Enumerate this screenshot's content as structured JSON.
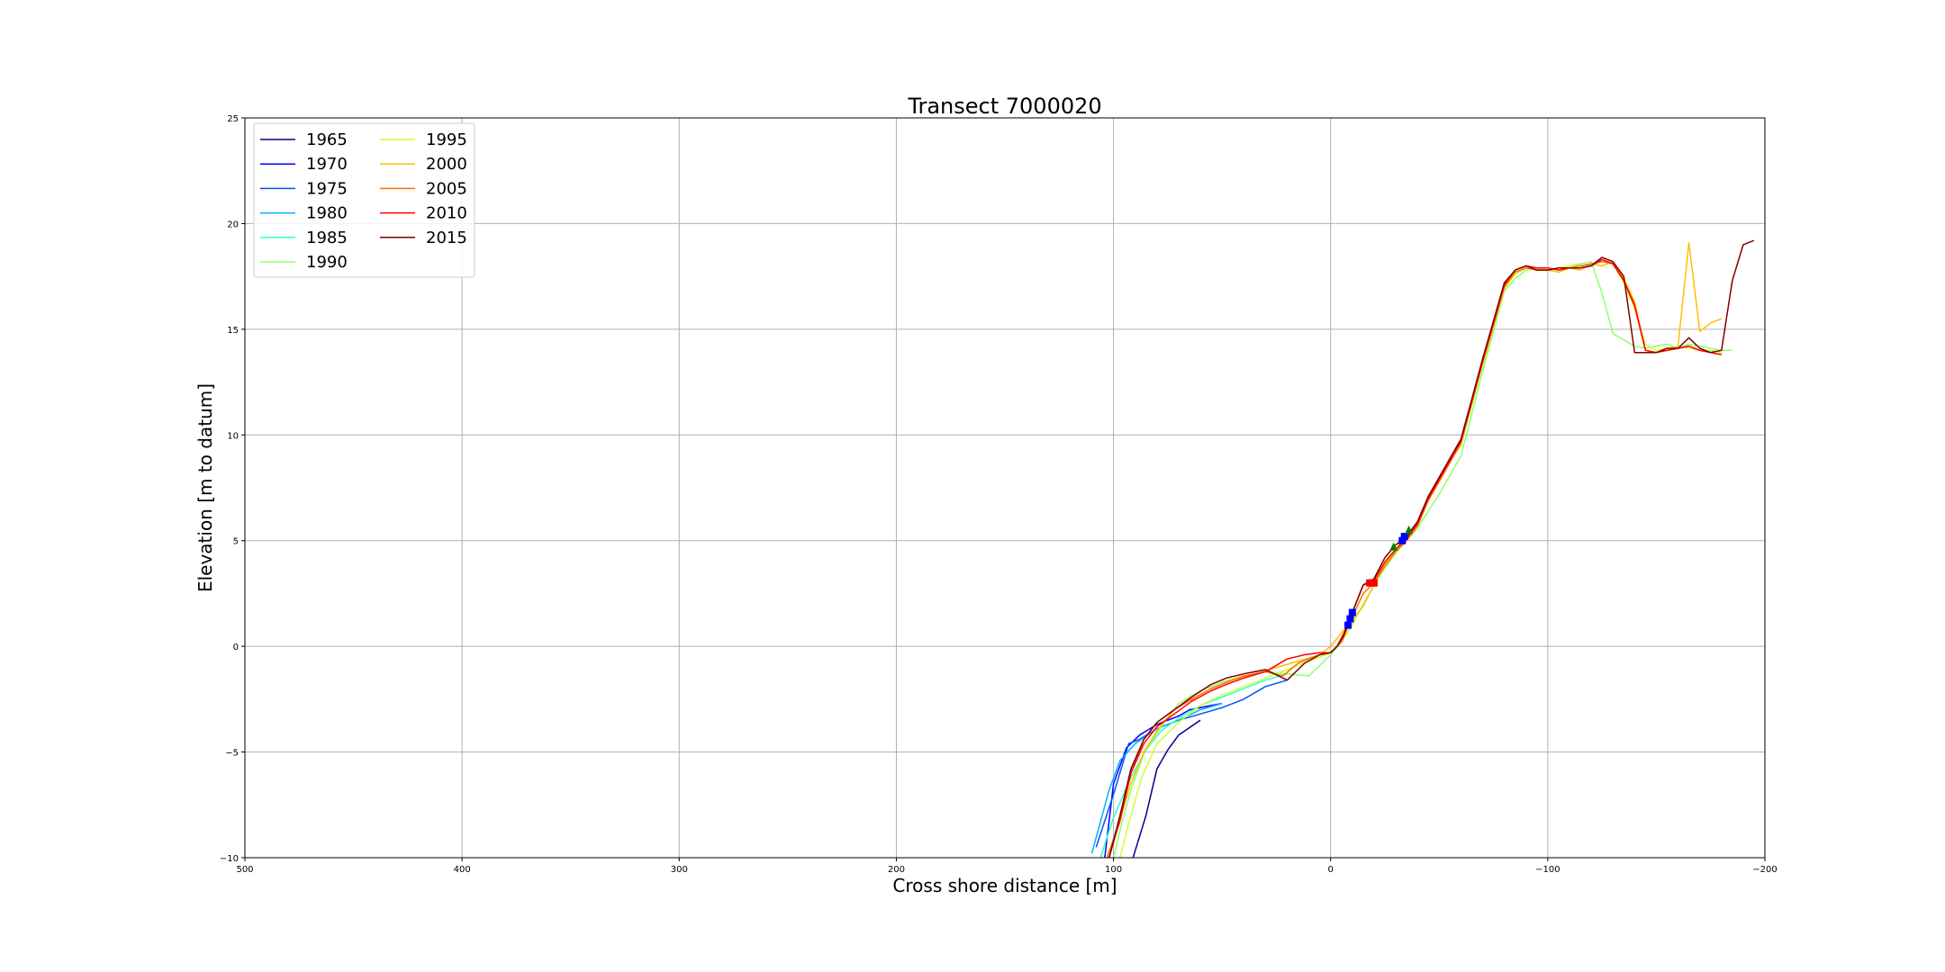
{
  "chart_data": {
    "type": "line",
    "title": "Transect 7000020",
    "xlabel": "Cross shore distance [m]",
    "ylabel": "Elevation [m to datum]",
    "xlim": [
      500,
      -200
    ],
    "ylim": [
      -10,
      25
    ],
    "x_ticks": [
      500,
      400,
      300,
      200,
      100,
      0,
      -100,
      -200
    ],
    "x_tick_labels": [
      "500",
      "400",
      "300",
      "200",
      "100",
      "0",
      "−100",
      "−200"
    ],
    "y_ticks": [
      -10,
      -5,
      0,
      5,
      10,
      15,
      20,
      25
    ],
    "y_tick_labels": [
      "−10",
      "−5",
      "0",
      "5",
      "10",
      "15",
      "20",
      "25"
    ],
    "grid": true,
    "legend_position": "top-left",
    "legend_columns": 2,
    "series": [
      {
        "name": "1965",
        "color": "#00008f",
        "x": [
          91,
          85,
          80,
          75,
          70,
          60
        ],
        "y": [
          -10,
          -8,
          -5.8,
          -4.9,
          -4.2,
          -3.5
        ]
      },
      {
        "name": "1970",
        "color": "#0000ff",
        "x": [
          104,
          100,
          94,
          88,
          80,
          70,
          65,
          55,
          50
        ],
        "y": [
          -10,
          -6.5,
          -4.8,
          -4.2,
          -3.7,
          -3.3,
          -3.0,
          -2.8,
          -2.7
        ]
      },
      {
        "name": "1975",
        "color": "#0050ff",
        "x": [
          108,
          100,
          93,
          88,
          80,
          70,
          60,
          50,
          40,
          30,
          20
        ],
        "y": [
          -9.5,
          -7,
          -4.6,
          -4.4,
          -3.9,
          -3.5,
          -3.2,
          -2.9,
          -2.5,
          -1.9,
          -1.6
        ]
      },
      {
        "name": "1980",
        "color": "#00afff",
        "x": [
          110,
          106,
          102,
          97,
          90,
          80,
          70,
          60,
          50
        ],
        "y": [
          -9.8,
          -8.3,
          -6.8,
          -5.4,
          -4.6,
          -3.9,
          -3.5,
          -3.0,
          -2.7
        ]
      },
      {
        "name": "1985",
        "color": "#2fffcf",
        "x": [
          106,
          100,
          92,
          85,
          78,
          70,
          60,
          50,
          40,
          30,
          20
        ],
        "y": [
          -10,
          -8.1,
          -6.2,
          -4.9,
          -4.0,
          -3.4,
          -2.8,
          -2.4,
          -2.0,
          -1.6,
          -1.3
        ]
      },
      {
        "name": "1990",
        "color": "#8fff70",
        "x": [
          100,
          96,
          92,
          86,
          80,
          70,
          60,
          50,
          40,
          30,
          20,
          10,
          5,
          0,
          -5,
          -10,
          -15,
          -20,
          -25,
          -30,
          -35,
          -40,
          -45,
          -50,
          -55,
          -60,
          -65,
          -70,
          -75,
          -80,
          -85,
          -90,
          -95,
          -100,
          -105,
          -110,
          -115,
          -120,
          -125,
          -130,
          -135,
          -140,
          -145,
          -150,
          -155,
          -160,
          -165,
          -170,
          -175,
          -180,
          -185
        ],
        "y": [
          -10,
          -8.3,
          -6.8,
          -5.1,
          -4.1,
          -2.7,
          -2.1,
          -1.7,
          -1.4,
          -1.2,
          -1.3,
          -1.4,
          -0.9,
          -0.4,
          0.2,
          1.0,
          2.0,
          2.9,
          3.7,
          4.4,
          5.0,
          5.6,
          6.4,
          7.2,
          8.1,
          9.0,
          11.0,
          13.0,
          14.9,
          16.8,
          17.4,
          17.8,
          17.9,
          17.8,
          17.9,
          18.0,
          18.1,
          18.2,
          16.7,
          14.8,
          14.5,
          14.2,
          14.1,
          14.2,
          14.3,
          14.1,
          14.3,
          14.2,
          14.1,
          14.0,
          14.0
        ]
      },
      {
        "name": "1995",
        "color": "#cfff2f",
        "x": [
          97,
          92,
          87,
          80,
          70,
          60,
          50,
          40,
          30,
          20,
          10,
          5,
          0,
          -5,
          -10,
          -15,
          -20,
          -25,
          -30,
          -35,
          -40,
          -45,
          -50,
          -55,
          -60,
          -65,
          -70,
          -75,
          -80,
          -85,
          -90,
          -95,
          -100,
          -105,
          -110,
          -115,
          -120,
          -125,
          -130,
          -135,
          -140,
          -145,
          -150,
          -155,
          -160,
          -165,
          -170,
          -175,
          -180
        ],
        "y": [
          -10,
          -8.0,
          -6.2,
          -4.6,
          -3.6,
          -2.8,
          -2.3,
          -1.9,
          -1.5,
          -1.1,
          -0.7,
          -0.5,
          -0.3,
          0.2,
          1.0,
          2.0,
          2.9,
          3.8,
          4.5,
          5.1,
          5.8,
          6.9,
          7.9,
          8.8,
          9.5,
          11.4,
          13.3,
          15.1,
          16.9,
          17.6,
          17.9,
          17.9,
          17.8,
          17.9,
          18.0,
          18.0,
          18.1,
          18.2,
          18.1,
          17.2,
          16.0,
          14.3,
          14.0,
          14.1,
          14.2,
          14.1,
          14.0,
          14.0,
          13.9
        ]
      },
      {
        "name": "2000",
        "color": "#ffbf00",
        "x": [
          103,
          98,
          92,
          86,
          80,
          72,
          64,
          55,
          45,
          35,
          25,
          15,
          8,
          5,
          0,
          -8,
          -15,
          -20,
          -25,
          -30,
          -35,
          -40,
          -45,
          -50,
          -55,
          -60,
          -65,
          -70,
          -75,
          -80,
          -85,
          -90,
          -95,
          -100,
          -105,
          -110,
          -115,
          -120,
          -125,
          -130,
          -135,
          -140,
          -145,
          -150,
          -155,
          -160,
          -165,
          -170,
          -175,
          -180
        ],
        "y": [
          -10,
          -8.5,
          -6.5,
          -5.0,
          -4.0,
          -3.0,
          -2.5,
          -2.0,
          -1.6,
          -1.3,
          -1.0,
          -0.7,
          -0.5,
          -0.4,
          0.0,
          1.0,
          1.9,
          2.9,
          3.9,
          4.6,
          5.2,
          5.9,
          7.0,
          7.9,
          8.8,
          9.6,
          11.5,
          13.4,
          15.2,
          17.0,
          17.7,
          17.9,
          17.8,
          17.8,
          17.7,
          17.9,
          17.8,
          18.1,
          18.0,
          18.2,
          17.4,
          16.3,
          14.0,
          13.9,
          14.0,
          14.2,
          19.1,
          14.9,
          15.3,
          15.5
        ]
      },
      {
        "name": "2005",
        "color": "#ff6f00",
        "x": [
          103,
          97,
          92,
          86,
          80,
          72,
          64,
          55,
          48,
          40,
          30,
          22,
          15,
          8,
          5,
          0,
          -5,
          -10,
          -15,
          -20,
          -25,
          -30,
          -35,
          -40,
          -45,
          -50,
          -55,
          -60,
          -65,
          -70,
          -75,
          -80,
          -85,
          -90,
          -95,
          -100,
          -105,
          -110,
          -115,
          -120,
          -125,
          -130,
          -135,
          -140,
          -145,
          -150,
          -155,
          -160,
          -165,
          -170,
          -175,
          -180
        ],
        "y": [
          -10,
          -8.3,
          -6.0,
          -4.4,
          -3.6,
          -3.0,
          -2.5,
          -2.0,
          -1.7,
          -1.4,
          -1.2,
          -1.4,
          -0.8,
          -0.5,
          -0.4,
          -0.3,
          0.2,
          1.4,
          2.5,
          3.0,
          3.8,
          4.5,
          5.0,
          5.7,
          6.9,
          7.8,
          8.7,
          9.6,
          11.5,
          13.4,
          15.2,
          17.0,
          17.7,
          17.9,
          17.8,
          17.8,
          17.9,
          17.9,
          18.0,
          18.1,
          18.2,
          18.1,
          17.3,
          16.2,
          14.0,
          13.9,
          14.0,
          14.1,
          14.2,
          14.0,
          13.9,
          13.8
        ]
      },
      {
        "name": "2010",
        "color": "#ff0000",
        "x": [
          102,
          97,
          92,
          86,
          80,
          72,
          64,
          55,
          48,
          40,
          30,
          20,
          12,
          5,
          0,
          -3,
          -6,
          -10,
          -15,
          -20,
          -25,
          -30,
          -35,
          -40,
          -45,
          -50,
          -55,
          -60,
          -65,
          -70,
          -75,
          -80,
          -85,
          -90,
          -95,
          -100,
          -105,
          -110,
          -115,
          -120,
          -125,
          -130,
          -135,
          -140,
          -145,
          -150,
          -155,
          -160,
          -165,
          -170,
          -175,
          -180
        ],
        "y": [
          -10,
          -8.2,
          -6.0,
          -4.6,
          -3.8,
          -3.2,
          -2.6,
          -2.1,
          -1.8,
          -1.5,
          -1.2,
          -0.6,
          -0.4,
          -0.3,
          -0.3,
          0.0,
          0.6,
          1.6,
          2.9,
          3.1,
          4.0,
          4.6,
          5.1,
          5.8,
          7.0,
          7.9,
          8.8,
          9.7,
          11.6,
          13.5,
          15.3,
          17.1,
          17.8,
          18.0,
          17.9,
          17.9,
          17.8,
          17.9,
          17.9,
          18.0,
          18.3,
          18.1,
          17.3,
          16.1,
          14.0,
          13.9,
          14.0,
          14.1,
          14.2,
          14.0,
          13.9,
          13.8
        ]
      },
      {
        "name": "2015",
        "color": "#7f0000",
        "x": [
          102,
          97,
          92,
          86,
          80,
          72,
          64,
          55,
          48,
          40,
          30,
          20,
          12,
          5,
          0,
          -3,
          -6,
          -10,
          -15,
          -20,
          -25,
          -30,
          -35,
          -40,
          -45,
          -50,
          -55,
          -60,
          -65,
          -70,
          -75,
          -80,
          -85,
          -90,
          -95,
          -100,
          -105,
          -110,
          -115,
          -120,
          -125,
          -130,
          -135,
          -140,
          -145,
          -150,
          -155,
          -160,
          -165,
          -170,
          -175,
          -180,
          -185,
          -190,
          -195
        ],
        "y": [
          -10,
          -8.0,
          -5.8,
          -4.4,
          -3.6,
          -3.0,
          -2.4,
          -1.8,
          -1.5,
          -1.3,
          -1.1,
          -1.6,
          -0.8,
          -0.4,
          -0.3,
          0.0,
          0.5,
          1.6,
          2.9,
          3.2,
          4.2,
          4.8,
          5.2,
          5.9,
          7.1,
          8.0,
          8.9,
          9.8,
          11.7,
          13.6,
          15.4,
          17.2,
          17.8,
          18.0,
          17.8,
          17.8,
          17.9,
          17.9,
          17.9,
          18.0,
          18.4,
          18.2,
          17.5,
          13.9,
          13.9,
          13.9,
          14.1,
          14.1,
          14.6,
          14.1,
          13.9,
          14.0,
          17.3,
          19.0,
          19.2
        ]
      }
    ],
    "markers": [
      {
        "color": "#0000ff",
        "shape": "square",
        "x": [
          -8,
          -9,
          -10
        ],
        "y": [
          1.0,
          1.3,
          1.6
        ]
      },
      {
        "color": "#ff0000",
        "shape": "square",
        "x": [
          -18,
          -19,
          -20
        ],
        "y": [
          3.0,
          3.0,
          3.0
        ]
      },
      {
        "color": "#0000ff",
        "shape": "square",
        "x": [
          -33,
          -34
        ],
        "y": [
          5.0,
          5.2
        ]
      },
      {
        "color": "#008000",
        "shape": "triangle",
        "x": [
          -29,
          -36
        ],
        "y": [
          4.7,
          5.5
        ]
      }
    ]
  }
}
